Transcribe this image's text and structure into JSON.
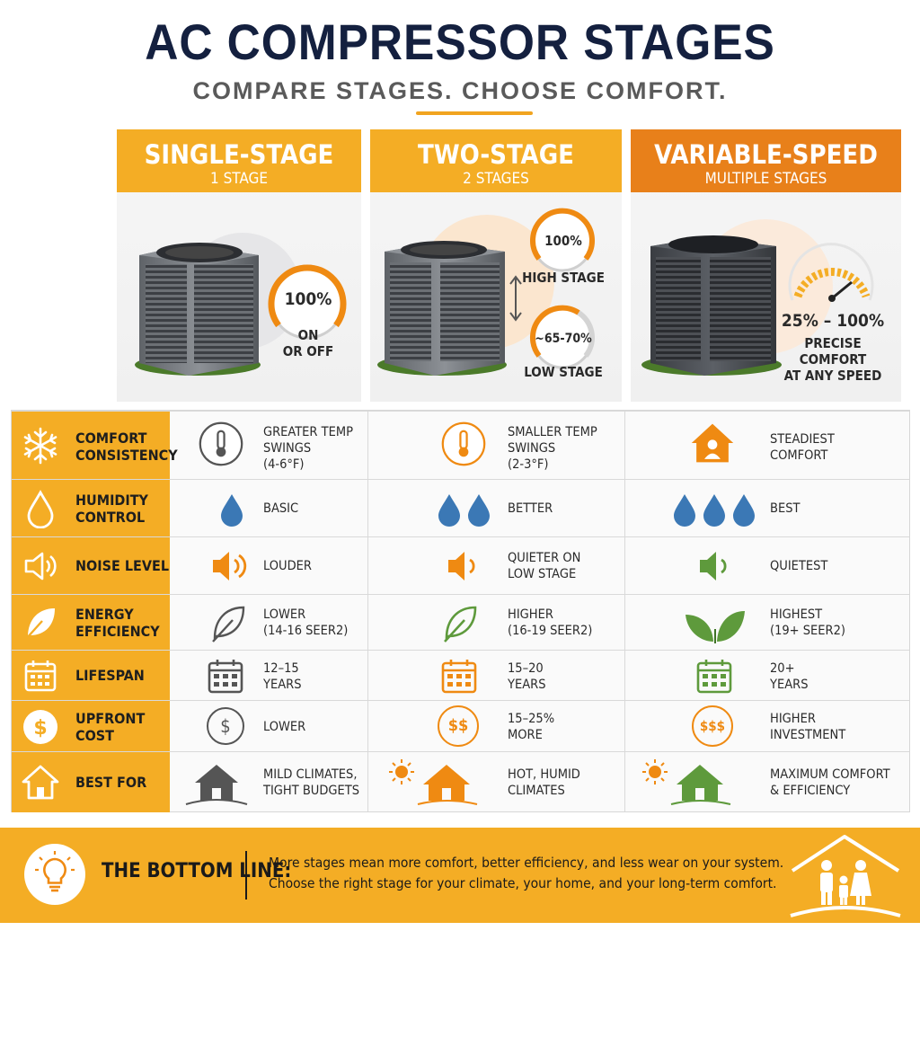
{
  "header": {
    "title": "AC COMPRESSOR STAGES",
    "subtitle": "COMPARE STAGES.  CHOOSE COMFORT."
  },
  "columns": [
    {
      "name": "SINGLE-STAGE",
      "sub": "1 STAGE",
      "gauge": "100%",
      "caption_l1": "ON",
      "caption_l2": "OR OFF"
    },
    {
      "name": "TWO-STAGE",
      "sub": "2 STAGES",
      "high_value": "100%",
      "high_label": "HIGH STAGE",
      "low_value": "~65-70%",
      "low_label": "LOW STAGE"
    },
    {
      "name": "VARIABLE-SPEED",
      "sub": "MULTIPLE STAGES",
      "range": "25% – 100%",
      "caption_l1": "PRECISE",
      "caption_l2": "COMFORT",
      "caption_l3": "AT ANY SPEED"
    }
  ],
  "rows": [
    {
      "label": [
        "COMFORT",
        "CONSISTENCY"
      ],
      "c1": [
        "GREATER TEMP",
        "SWINGS",
        "(4-6°F)"
      ],
      "c2": [
        "SMALLER TEMP",
        "SWINGS",
        "(2-3°F)"
      ],
      "c3": [
        "STEADIEST",
        "COMFORT"
      ]
    },
    {
      "label": [
        "HUMIDITY",
        "CONTROL"
      ],
      "c1": [
        "BASIC"
      ],
      "c2": [
        "BETTER"
      ],
      "c3": [
        "BEST"
      ]
    },
    {
      "label": [
        "NOISE LEVEL"
      ],
      "c1": [
        "LOUDER"
      ],
      "c2": [
        "QUIETER ON",
        "LOW STAGE"
      ],
      "c3": [
        "QUIETEST"
      ]
    },
    {
      "label": [
        "ENERGY",
        "EFFICIENCY"
      ],
      "c1": [
        "LOWER",
        "(14-16 SEER2)"
      ],
      "c2": [
        "HIGHER",
        "(16-19 SEER2)"
      ],
      "c3": [
        "HIGHEST",
        "(19+ SEER2)"
      ]
    },
    {
      "label": [
        "LIFESPAN"
      ],
      "c1": [
        "12–15",
        "YEARS"
      ],
      "c2": [
        "15–20",
        "YEARS"
      ],
      "c3": [
        "20+",
        "YEARS"
      ]
    },
    {
      "label": [
        "UPFRONT",
        "COST"
      ],
      "c1": [
        "LOWER"
      ],
      "c2": [
        "15–25%",
        "MORE"
      ],
      "c3": [
        "HIGHER",
        "INVESTMENT"
      ]
    },
    {
      "label": [
        "BEST FOR"
      ],
      "c1": [
        "MILD CLIMATES,",
        "TIGHT BUDGETS"
      ],
      "c2": [
        "HOT, HUMID",
        "CLIMATES"
      ],
      "c3": [
        "MAXIMUM COMFORT",
        "& EFFICIENCY"
      ]
    }
  ],
  "cost_symbols": [
    "$",
    "$$",
    "$$$"
  ],
  "bottom": {
    "title": "THE BOTTOM LINE:",
    "line1": "More stages mean more comfort, better efficiency, and less wear on your system.",
    "line2": "Choose the right stage for your climate, your home, and your long-term comfort."
  },
  "colors": {
    "orange": "#f4ad25",
    "dark_orange": "#e8801a",
    "navy": "#14203f",
    "blue": "#3b78b5",
    "green": "#5e9a3c",
    "gray": "#4a4a4a"
  },
  "icons": {
    "labels": [
      "snowflake-icon",
      "water-drop-icon",
      "speaker-icon",
      "leaf-icon",
      "calendar-icon",
      "dollar-icon",
      "house-icon"
    ],
    "bottom": [
      "lightbulb-icon",
      "family-house-icon"
    ]
  }
}
